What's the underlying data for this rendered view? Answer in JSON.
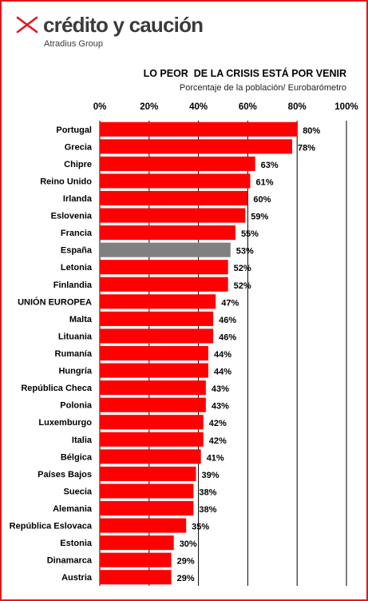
{
  "logo": {
    "name": "crédito y caución",
    "group": "Atradius Group",
    "mark_color": "#e8141b"
  },
  "colors": {
    "bar": "#ff0000",
    "highlight_bar": "#808080",
    "frame": "#e8141b"
  },
  "chart_data": {
    "type": "bar",
    "orientation": "horizontal",
    "title": "LO PEOR  DE LA CRISIS ESTÁ POR VENIR",
    "subtitle": "Porcentaje de la población/ Eurobarómetro",
    "xlim": [
      0,
      100
    ],
    "xticks": [
      "0%",
      "20%",
      "40%",
      "60%",
      "80%",
      "100%"
    ],
    "grid": "vertical",
    "highlight_category": "España",
    "categories": [
      "Portugal",
      "Grecia",
      "Chipre",
      "Reino Unido",
      "Irlanda",
      "Eslovenia",
      "Francia",
      "España",
      "Letonia",
      "Finlandia",
      "UNIÓN EUROPEA",
      "Malta",
      "Lituania",
      "Rumanía",
      "Hungría",
      "República Checa",
      "Polonia",
      "Luxemburgo",
      "Italia",
      "Bélgica",
      "Países Bajos",
      "Suecia",
      "Alemania",
      "República Eslovaca",
      "Estonia",
      "Dinamarca",
      "Austria"
    ],
    "values": [
      80,
      78,
      63,
      61,
      60,
      59,
      55,
      53,
      52,
      52,
      47,
      46,
      46,
      44,
      44,
      43,
      43,
      42,
      42,
      41,
      39,
      38,
      38,
      35,
      30,
      29,
      29
    ],
    "value_labels": [
      "80%",
      "78%",
      "63%",
      "61%",
      "60%",
      "59%",
      "55%",
      "53%",
      "52%",
      "52%",
      "47%",
      "46%",
      "46%",
      "44%",
      "44%",
      "43%",
      "43%",
      "42%",
      "42%",
      "41%",
      "39%",
      "38%",
      "38%",
      "35%",
      "30%",
      "29%",
      "29%"
    ]
  }
}
